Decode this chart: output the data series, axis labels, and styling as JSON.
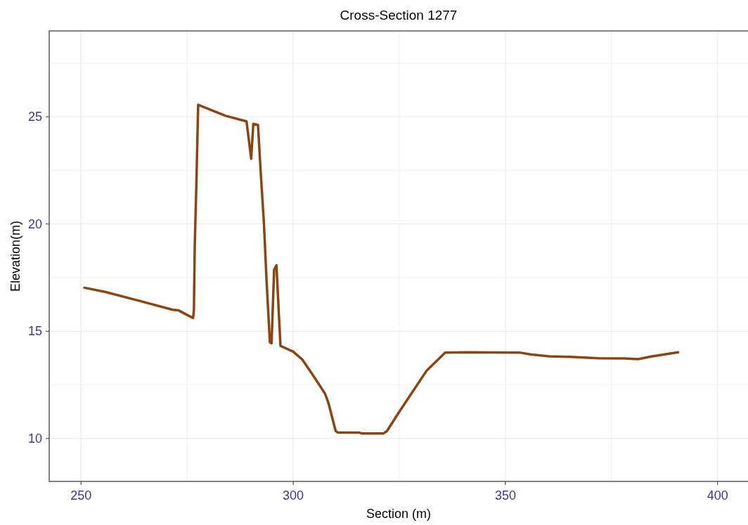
{
  "chart_data": {
    "type": "line",
    "title": "Cross-Section 1277",
    "xlabel": "Section (m)",
    "ylabel": "Elevation(m)",
    "xlim": [
      242.5,
      407.5
    ],
    "ylim": [
      8,
      29
    ],
    "xticks": [
      250,
      {
        "value": 275,
        "label": null
      },
      300,
      {
        "value": 325,
        "label": null
      },
      350,
      {
        "value": 375,
        "label": null
      },
      400
    ],
    "yticks": [
      10,
      {
        "value": 12.5,
        "label": null
      },
      15,
      {
        "value": 17.5,
        "label": null
      },
      20,
      {
        "value": 22.5,
        "label": null
      },
      25,
      {
        "value": 27.5,
        "label": null
      }
    ],
    "grid": true,
    "marker": "none",
    "line_style": "solid",
    "series": [
      {
        "color": "#8b4513",
        "x": [
          250.8,
          255.8,
          264.1,
          271.6,
          272.9,
          275.4,
          276.4,
          276.6,
          276.8,
          277.2,
          277.6,
          284.0,
          289.0,
          290.1,
          290.6,
          291.7,
          292.3,
          293.1,
          293.7,
          294.5,
          294.9,
          295.5,
          296.05,
          296.4,
          297.0,
          300.0,
          302.2,
          305.0,
          307.5,
          308.3,
          310.0,
          310.5,
          315.5,
          316.1,
          321.3,
          322.1,
          324.9,
          328.2,
          331.5,
          335.8,
          340.4,
          353.6,
          355.9,
          360.3,
          365.3,
          371.9,
          378.0,
          381.3,
          384.6,
          390.7
        ],
        "values": [
          17.03,
          16.83,
          16.4,
          16.0,
          15.98,
          15.72,
          15.62,
          16.0,
          19.0,
          22.0,
          25.56,
          25.05,
          24.78,
          23.04,
          24.67,
          24.62,
          22.55,
          20.04,
          17.43,
          14.49,
          14.44,
          17.87,
          18.08,
          16.67,
          14.32,
          14.05,
          13.67,
          12.85,
          12.09,
          11.66,
          10.35,
          10.28,
          10.28,
          10.24,
          10.24,
          10.35,
          11.22,
          12.2,
          13.18,
          14.0,
          14.02,
          14.0,
          13.92,
          13.83,
          13.81,
          13.74,
          13.73,
          13.7,
          13.83,
          14.02
        ]
      }
    ]
  }
}
